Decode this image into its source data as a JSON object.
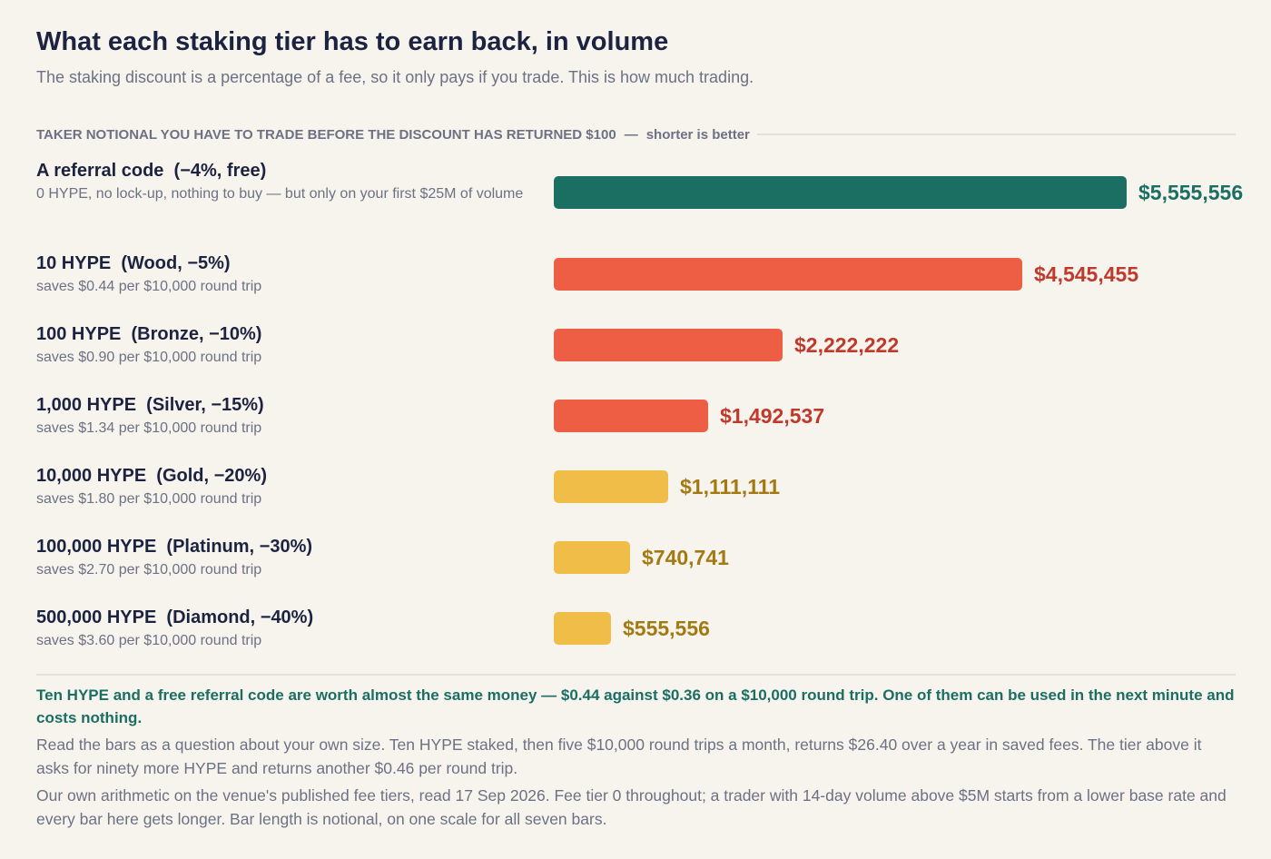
{
  "header": {
    "title": "What each staking tier has to earn back, in volume",
    "subtitle": "The staking discount is a percentage of a fee, so it only pays if you trade. This is how much trading."
  },
  "section": {
    "heading": "TAKER NOTIONAL YOU HAVE TO TRADE BEFORE THE DISCOUNT HAS RETURNED $100",
    "separator": "—",
    "hint": "shorter is better"
  },
  "colors": {
    "referral": "#1a6e62",
    "low_tier": "#ee5e45",
    "low_tier_text": "#c0392b",
    "high_tier": "#f0bd48",
    "high_tier_text": "#a37a12"
  },
  "chart_data": {
    "type": "bar",
    "orientation": "horizontal",
    "categories": [
      "A referral code  (−4%, free)",
      "10 HYPE  (Wood, −5%)",
      "100 HYPE  (Bronze, −10%)",
      "1,000 HYPE  (Silver, −15%)",
      "10,000 HYPE  (Gold, −20%)",
      "100,000 HYPE  (Platinum, −30%)",
      "500,000 HYPE  (Diamond, −40%)"
    ],
    "sublabels": [
      "0 HYPE, no lock-up, nothing to buy — but only on your first $25M of volume",
      "saves $0.44 per $10,000 round trip",
      "saves $0.90 per $10,000 round trip",
      "saves $1.34 per $10,000 round trip",
      "saves $1.80 per $10,000 round trip",
      "saves $2.70 per $10,000 round trip",
      "saves $3.60 per $10,000 round trip"
    ],
    "values": [
      5555556,
      4545455,
      2222222,
      1492537,
      1111111,
      740741,
      555556
    ],
    "value_labels": [
      "$5,555,556",
      "$4,545,455",
      "$2,222,222",
      "$1,492,537",
      "$1,111,111",
      "$740,741",
      "$555,556"
    ],
    "bar_colors": [
      "referral",
      "low_tier",
      "low_tier",
      "low_tier",
      "high_tier",
      "high_tier",
      "high_tier"
    ],
    "xlim": [
      0,
      5555556
    ],
    "grid": false
  },
  "notes": {
    "highlight": "Ten HYPE and a free referral code are worth almost the same money — $0.44 against $0.36 on a $10,000 round trip. One of them can be used in the next minute and costs nothing.",
    "para1": "Read the bars as a question about your own size. Ten HYPE staked, then five $10,000 round trips a month, returns $26.40 over a year in saved fees. The tier above it asks for ninety more HYPE and returns another $0.46 per round trip.",
    "para2": "Our own arithmetic on the venue's published fee tiers, read 17 Sep 2026. Fee tier 0 throughout; a trader with 14-day volume above $5M starts from a lower base rate and every bar here gets longer. Bar length is notional, on one scale for all seven bars."
  }
}
